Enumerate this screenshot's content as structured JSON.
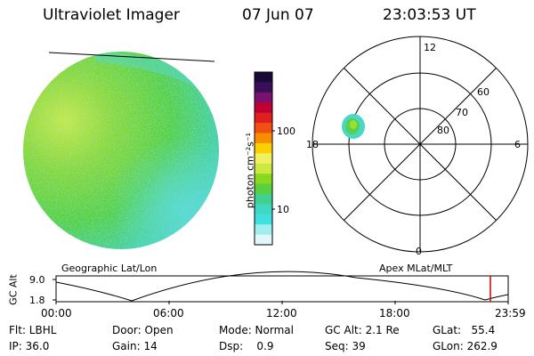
{
  "header": {
    "instrument": "Ultraviolet Imager",
    "date": "07 Jun 07",
    "time": "23:03:53 UT"
  },
  "colorbar": {
    "unit_label": "photon cm⁻²s⁻¹",
    "tick_high": "100",
    "tick_low": "10",
    "colors": [
      "#1a0a3a",
      "#3a0f5a",
      "#7a1070",
      "#c00030",
      "#e02020",
      "#f05010",
      "#f58f00",
      "#fcd000",
      "#f2f060",
      "#cde840",
      "#8ad820",
      "#58d040",
      "#40d090",
      "#40d8c0",
      "#40e0e0",
      "#a0eef0",
      "#e0f8f8"
    ]
  },
  "left_panel": {
    "label": "Geographic Lat/Lon"
  },
  "polar_plot": {
    "label": "Apex MLat/MLT",
    "mlt_labels": {
      "top": "12",
      "left": "18",
      "right": "6",
      "bottom": "0"
    },
    "lat_labels": [
      "60",
      "70",
      "80"
    ]
  },
  "altitude_plot": {
    "y_axis_label": "GC Alt",
    "y_tick_top": "9.0",
    "y_tick_bottom": "1.8",
    "x_ticks": [
      "00:00",
      "06:00",
      "12:00",
      "18:00",
      "23:59"
    ],
    "current_time_color": "#d00000"
  },
  "footer": {
    "filter": "Flt: LBHL",
    "ip": "IP: 36.0",
    "door": "Door: Open",
    "gain": "Gain: 14",
    "mode": "Mode: Normal",
    "dsp": "Dsp:    0.9",
    "gc_alt": "GC Alt: 2.1 Re",
    "seq": "Seq: 39",
    "glat": "GLat:   55.4",
    "glon": "GLon: 262.9"
  }
}
